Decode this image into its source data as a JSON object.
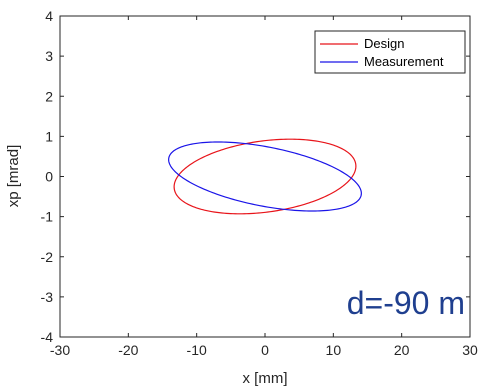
{
  "chart_data": {
    "type": "line",
    "title": "",
    "xlabel": "x [mm]",
    "ylabel": "xp [mrad]",
    "xlim": [
      -30,
      30
    ],
    "ylim": [
      -4,
      4
    ],
    "xticks": [
      -30,
      -20,
      -10,
      0,
      10,
      20,
      30
    ],
    "yticks": [
      -4,
      -3,
      -2,
      -1,
      0,
      1,
      2,
      3,
      4
    ],
    "xtick_labels": [
      "-30",
      "-20",
      "-10",
      "0",
      "10",
      "20",
      "30"
    ],
    "ytick_labels": [
      "-4",
      "-3",
      "-2",
      "-1",
      "0",
      "1",
      "2",
      "3",
      "4"
    ],
    "grid": false,
    "legend_position": "top-right",
    "annotation": "d=-90 m",
    "series": [
      {
        "name": "Design",
        "color": "#e8141a",
        "shape": "ellipse",
        "center": [
          0,
          0
        ],
        "x_extent": [
          -13.3,
          13.3
        ],
        "xp_extent": [
          -0.93,
          0.93
        ],
        "x_at_xp_max": 2.0,
        "xp_at_x_max": 0.12
      },
      {
        "name": "Measurement",
        "color": "#1a14e8",
        "shape": "ellipse",
        "center": [
          0,
          0
        ],
        "x_extent": [
          -14.1,
          14.1
        ],
        "xp_extent": [
          -0.86,
          0.86
        ],
        "x_at_xp_max": -4.0,
        "xp_at_x_max": -0.19
      }
    ]
  }
}
